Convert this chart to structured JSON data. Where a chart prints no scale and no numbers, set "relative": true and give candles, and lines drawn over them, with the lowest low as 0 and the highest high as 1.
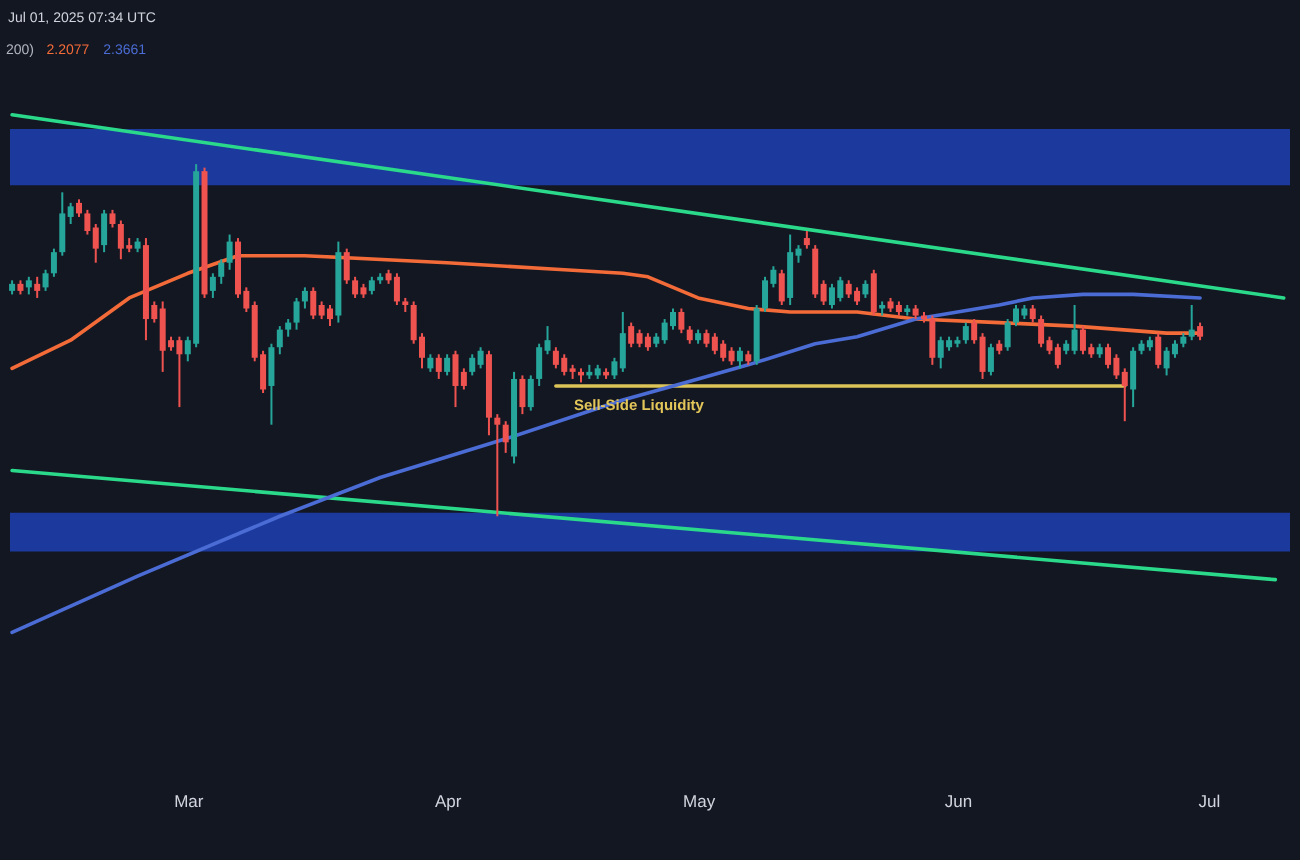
{
  "chart_data": {
    "type": "candlestick",
    "relative": true,
    "annotations": [
      "Jul 01, 2025 07:34 UTC",
      {
        "text": "Sell-Side Liquidity",
        "x": "2025-04-14",
        "y": 0.37
      }
    ],
    "legend": "top left",
    "legend_title": "200)",
    "xlim": [
      "2025-02-07T18:00",
      "2025-07-10T18:00"
    ],
    "xticks": [
      {
        "value": "2025-03-01",
        "label": "Mar"
      },
      {
        "value": "2025-04-01",
        "label": "Apr"
      },
      {
        "value": "2025-05-01",
        "label": "May"
      },
      {
        "value": "2025-06-01",
        "label": "Jun"
      },
      {
        "value": "2025-07-01",
        "label": "Jul"
      }
    ],
    "x": [
      "2025-02-08",
      "2025-02-09",
      "2025-02-10",
      "2025-02-11",
      "2025-02-12",
      "2025-02-13",
      "2025-02-14",
      "2025-02-15",
      "2025-02-16",
      "2025-02-17",
      "2025-02-18",
      "2025-02-19",
      "2025-02-20",
      "2025-02-21",
      "2025-02-22",
      "2025-02-23",
      "2025-02-24",
      "2025-02-25",
      "2025-02-26",
      "2025-02-27",
      "2025-02-28",
      "2025-03-01",
      "2025-03-02",
      "2025-03-03",
      "2025-03-04",
      "2025-03-05",
      "2025-03-06",
      "2025-03-07",
      "2025-03-08",
      "2025-03-09",
      "2025-03-10",
      "2025-03-11",
      "2025-03-12",
      "2025-03-13",
      "2025-03-14",
      "2025-03-15",
      "2025-03-16",
      "2025-03-17",
      "2025-03-18",
      "2025-03-19",
      "2025-03-20",
      "2025-03-21",
      "2025-03-22",
      "2025-03-23",
      "2025-03-24",
      "2025-03-25",
      "2025-03-26",
      "2025-03-27",
      "2025-03-28",
      "2025-03-29",
      "2025-03-30",
      "2025-03-31",
      "2025-04-01",
      "2025-04-02",
      "2025-04-03",
      "2025-04-04",
      "2025-04-05",
      "2025-04-06",
      "2025-04-07",
      "2025-04-08",
      "2025-04-09",
      "2025-04-10",
      "2025-04-11",
      "2025-04-12",
      "2025-04-13",
      "2025-04-14",
      "2025-04-15",
      "2025-04-16",
      "2025-04-17",
      "2025-04-18",
      "2025-04-19",
      "2025-04-20",
      "2025-04-21",
      "2025-04-22",
      "2025-04-23",
      "2025-04-24",
      "2025-04-25",
      "2025-04-26",
      "2025-04-27",
      "2025-04-28",
      "2025-04-29",
      "2025-04-30",
      "2025-05-01",
      "2025-05-02",
      "2025-05-03",
      "2025-05-04",
      "2025-05-05",
      "2025-05-06",
      "2025-05-07",
      "2025-05-08",
      "2025-05-09",
      "2025-05-10",
      "2025-05-11",
      "2025-05-12",
      "2025-05-13",
      "2025-05-14",
      "2025-05-15",
      "2025-05-16",
      "2025-05-17",
      "2025-05-18",
      "2025-05-19",
      "2025-05-20",
      "2025-05-21",
      "2025-05-22",
      "2025-05-23",
      "2025-05-24",
      "2025-05-25",
      "2025-05-26",
      "2025-05-27",
      "2025-05-28",
      "2025-05-29",
      "2025-05-30",
      "2025-05-31",
      "2025-06-01",
      "2025-06-02",
      "2025-06-03",
      "2025-06-04",
      "2025-06-05",
      "2025-06-06",
      "2025-06-07",
      "2025-06-08",
      "2025-06-09",
      "2025-06-10",
      "2025-06-11",
      "2025-06-12",
      "2025-06-13",
      "2025-06-14",
      "2025-06-15",
      "2025-06-16",
      "2025-06-17",
      "2025-06-18",
      "2025-06-19",
      "2025-06-20",
      "2025-06-21",
      "2025-06-22",
      "2025-06-23",
      "2025-06-24",
      "2025-06-25",
      "2025-06-26",
      "2025-06-27",
      "2025-06-28",
      "2025-06-29",
      "2025-06-30"
    ],
    "ohlc": [
      [
        0.64,
        0.67,
        0.63,
        0.66
      ],
      [
        0.66,
        0.67,
        0.63,
        0.64
      ],
      [
        0.65,
        0.68,
        0.63,
        0.67
      ],
      [
        0.66,
        0.68,
        0.62,
        0.64
      ],
      [
        0.65,
        0.7,
        0.64,
        0.69
      ],
      [
        0.69,
        0.76,
        0.68,
        0.75
      ],
      [
        0.75,
        0.92,
        0.74,
        0.86
      ],
      [
        0.85,
        0.89,
        0.83,
        0.88
      ],
      [
        0.89,
        0.9,
        0.85,
        0.86
      ],
      [
        0.86,
        0.87,
        0.8,
        0.81
      ],
      [
        0.82,
        0.83,
        0.72,
        0.76
      ],
      [
        0.77,
        0.87,
        0.75,
        0.86
      ],
      [
        0.86,
        0.87,
        0.82,
        0.83
      ],
      [
        0.83,
        0.84,
        0.73,
        0.76
      ],
      [
        0.77,
        0.79,
        0.75,
        0.76
      ],
      [
        0.76,
        0.79,
        0.75,
        0.78
      ],
      [
        0.77,
        0.79,
        0.5,
        0.56
      ],
      [
        0.6,
        0.61,
        0.55,
        0.56
      ],
      [
        0.59,
        0.61,
        0.41,
        0.47
      ],
      [
        0.5,
        0.51,
        0.47,
        0.48
      ],
      [
        0.5,
        0.51,
        0.31,
        0.46
      ],
      [
        0.46,
        0.51,
        0.44,
        0.5
      ],
      [
        0.49,
        1,
        0.48,
        0.98
      ],
      [
        0.98,
        0.99,
        0.62,
        0.63
      ],
      [
        0.64,
        0.69,
        0.62,
        0.68
      ],
      [
        0.68,
        0.73,
        0.66,
        0.72
      ],
      [
        0.72,
        0.8,
        0.7,
        0.78
      ],
      [
        0.78,
        0.79,
        0.62,
        0.63
      ],
      [
        0.64,
        0.65,
        0.58,
        0.59
      ],
      [
        0.6,
        0.61,
        0.44,
        0.45
      ],
      [
        0.46,
        0.47,
        0.35,
        0.36
      ],
      [
        0.37,
        0.49,
        0.26,
        0.48
      ],
      [
        0.48,
        0.54,
        0.46,
        0.53
      ],
      [
        0.53,
        0.56,
        0.51,
        0.55
      ],
      [
        0.55,
        0.62,
        0.53,
        0.61
      ],
      [
        0.61,
        0.65,
        0.59,
        0.64
      ],
      [
        0.64,
        0.65,
        0.56,
        0.57
      ],
      [
        0.6,
        0.61,
        0.56,
        0.57
      ],
      [
        0.59,
        0.6,
        0.54,
        0.56
      ],
      [
        0.57,
        0.78,
        0.55,
        0.75
      ],
      [
        0.75,
        0.76,
        0.66,
        0.67
      ],
      [
        0.67,
        0.68,
        0.62,
        0.63
      ],
      [
        0.65,
        0.66,
        0.62,
        0.63
      ],
      [
        0.64,
        0.68,
        0.63,
        0.67
      ],
      [
        0.67,
        0.69,
        0.66,
        0.68
      ],
      [
        0.69,
        0.7,
        0.66,
        0.67
      ],
      [
        0.68,
        0.69,
        0.6,
        0.61
      ],
      [
        0.61,
        0.62,
        0.58,
        0.6
      ],
      [
        0.6,
        0.61,
        0.49,
        0.5
      ],
      [
        0.51,
        0.52,
        0.42,
        0.45
      ],
      [
        0.42,
        0.46,
        0.41,
        0.45
      ],
      [
        0.45,
        0.46,
        0.39,
        0.41
      ],
      [
        0.41,
        0.46,
        0.4,
        0.45
      ],
      [
        0.46,
        0.47,
        0.31,
        0.37
      ],
      [
        0.41,
        0.42,
        0.36,
        0.37
      ],
      [
        0.41,
        0.46,
        0.4,
        0.45
      ],
      [
        0.43,
        0.48,
        0.42,
        0.47
      ],
      [
        0.46,
        0.47,
        0.23,
        0.28
      ],
      [
        0.28,
        0.29,
        0,
        0.26
      ],
      [
        0.26,
        0.27,
        0.18,
        0.21
      ],
      [
        0.17,
        0.41,
        0.15,
        0.39
      ],
      [
        0.39,
        0.4,
        0.29,
        0.31
      ],
      [
        0.31,
        0.4,
        0.3,
        0.39
      ],
      [
        0.39,
        0.49,
        0.37,
        0.48
      ],
      [
        0.47,
        0.54,
        0.46,
        0.5
      ],
      [
        0.47,
        0.48,
        0.42,
        0.43
      ],
      [
        0.45,
        0.46,
        0.4,
        0.41
      ],
      [
        0.42,
        0.43,
        0.39,
        0.41
      ],
      [
        0.41,
        0.42,
        0.38,
        0.4
      ],
      [
        0.4,
        0.43,
        0.39,
        0.41
      ],
      [
        0.4,
        0.43,
        0.39,
        0.42
      ],
      [
        0.41,
        0.42,
        0.39,
        0.4
      ],
      [
        0.4,
        0.45,
        0.39,
        0.44
      ],
      [
        0.42,
        0.58,
        0.41,
        0.52
      ],
      [
        0.54,
        0.55,
        0.48,
        0.49
      ],
      [
        0.52,
        0.53,
        0.48,
        0.49
      ],
      [
        0.51,
        0.52,
        0.47,
        0.48
      ],
      [
        0.49,
        0.52,
        0.48,
        0.51
      ],
      [
        0.5,
        0.56,
        0.49,
        0.55
      ],
      [
        0.54,
        0.59,
        0.53,
        0.58
      ],
      [
        0.58,
        0.59,
        0.52,
        0.53
      ],
      [
        0.53,
        0.54,
        0.49,
        0.5
      ],
      [
        0.5,
        0.53,
        0.49,
        0.52
      ],
      [
        0.52,
        0.53,
        0.48,
        0.49
      ],
      [
        0.51,
        0.52,
        0.46,
        0.47
      ],
      [
        0.49,
        0.5,
        0.44,
        0.45
      ],
      [
        0.47,
        0.48,
        0.43,
        0.44
      ],
      [
        0.44,
        0.48,
        0.42,
        0.47
      ],
      [
        0.46,
        0.47,
        0.43,
        0.44
      ],
      [
        0.44,
        0.6,
        0.43,
        0.59
      ],
      [
        0.59,
        0.68,
        0.58,
        0.67
      ],
      [
        0.66,
        0.71,
        0.65,
        0.7
      ],
      [
        0.69,
        0.7,
        0.6,
        0.61
      ],
      [
        0.62,
        0.8,
        0.6,
        0.75
      ],
      [
        0.74,
        0.77,
        0.72,
        0.76
      ],
      [
        0.79,
        0.81,
        0.76,
        0.77
      ],
      [
        0.76,
        0.77,
        0.62,
        0.63
      ],
      [
        0.66,
        0.67,
        0.6,
        0.61
      ],
      [
        0.6,
        0.66,
        0.59,
        0.65
      ],
      [
        0.62,
        0.68,
        0.61,
        0.67
      ],
      [
        0.66,
        0.67,
        0.62,
        0.63
      ],
      [
        0.64,
        0.65,
        0.6,
        0.61
      ],
      [
        0.63,
        0.67,
        0.62,
        0.66
      ],
      [
        0.69,
        0.7,
        0.57,
        0.58
      ],
      [
        0.59,
        0.61,
        0.57,
        0.6
      ],
      [
        0.61,
        0.62,
        0.58,
        0.59
      ],
      [
        0.6,
        0.61,
        0.57,
        0.58
      ],
      [
        0.58,
        0.6,
        0.57,
        0.59
      ],
      [
        0.59,
        0.6,
        0.56,
        0.57
      ],
      [
        0.57,
        0.58,
        0.55,
        0.56
      ],
      [
        0.56,
        0.57,
        0.43,
        0.45
      ],
      [
        0.45,
        0.51,
        0.42,
        0.5
      ],
      [
        0.48,
        0.51,
        0.47,
        0.5
      ],
      [
        0.49,
        0.51,
        0.48,
        0.5
      ],
      [
        0.5,
        0.55,
        0.49,
        0.54
      ],
      [
        0.55,
        0.56,
        0.49,
        0.5
      ],
      [
        0.51,
        0.52,
        0.39,
        0.41
      ],
      [
        0.41,
        0.49,
        0.4,
        0.48
      ],
      [
        0.49,
        0.5,
        0.46,
        0.47
      ],
      [
        0.48,
        0.56,
        0.47,
        0.55
      ],
      [
        0.55,
        0.6,
        0.54,
        0.59
      ],
      [
        0.57,
        0.6,
        0.56,
        0.59
      ],
      [
        0.59,
        0.6,
        0.55,
        0.56
      ],
      [
        0.56,
        0.57,
        0.48,
        0.49
      ],
      [
        0.5,
        0.51,
        0.46,
        0.47
      ],
      [
        0.48,
        0.49,
        0.42,
        0.43
      ],
      [
        0.47,
        0.5,
        0.46,
        0.49
      ],
      [
        0.47,
        0.6,
        0.46,
        0.53
      ],
      [
        0.53,
        0.54,
        0.46,
        0.47
      ],
      [
        0.48,
        0.49,
        0.45,
        0.46
      ],
      [
        0.46,
        0.49,
        0.45,
        0.48
      ],
      [
        0.48,
        0.49,
        0.42,
        0.43
      ],
      [
        0.45,
        0.46,
        0.39,
        0.4
      ],
      [
        0.41,
        0.42,
        0.27,
        0.37
      ],
      [
        0.36,
        0.48,
        0.31,
        0.47
      ],
      [
        0.47,
        0.5,
        0.46,
        0.49
      ],
      [
        0.48,
        0.51,
        0.47,
        0.5
      ],
      [
        0.51,
        0.52,
        0.42,
        0.43
      ],
      [
        0.42,
        0.48,
        0.4,
        0.47
      ],
      [
        0.46,
        0.5,
        0.45,
        0.49
      ],
      [
        0.49,
        0.52,
        0.48,
        0.51
      ],
      [
        0.51,
        0.6,
        0.5,
        0.53
      ],
      [
        0.54,
        0.55,
        0.5,
        0.51
      ]
    ],
    "colors": [
      "#26a69a",
      "#ef5350",
      "#26a69a",
      "#ef5350",
      "#26a69a",
      "#26a69a",
      "#26a69a",
      "#26a69a",
      "#ef5350",
      "#ef5350",
      "#ef5350",
      "#26a69a",
      "#ef5350",
      "#ef5350",
      "#ef5350",
      "#26a69a",
      "#ef5350",
      "#ef5350",
      "#ef5350",
      "#ef5350",
      "#ef5350",
      "#26a69a",
      "#26a69a",
      "#ef5350",
      "#26a69a",
      "#26a69a",
      "#26a69a",
      "#ef5350",
      "#ef5350",
      "#ef5350",
      "#ef5350",
      "#26a69a",
      "#26a69a",
      "#26a69a",
      "#26a69a",
      "#26a69a",
      "#ef5350",
      "#ef5350",
      "#ef5350",
      "#26a69a",
      "#ef5350",
      "#ef5350",
      "#ef5350",
      "#26a69a",
      "#26a69a",
      "#ef5350",
      "#ef5350",
      "#ef5350",
      "#ef5350",
      "#ef5350",
      "#26a69a",
      "#ef5350",
      "#26a69a",
      "#ef5350",
      "#ef5350",
      "#26a69a",
      "#26a69a",
      "#ef5350",
      "#ef5350",
      "#ef5350",
      "#26a69a",
      "#ef5350",
      "#26a69a",
      "#26a69a",
      "#26a69a",
      "#ef5350",
      "#ef5350",
      "#ef5350",
      "#ef5350",
      "#26a69a",
      "#26a69a",
      "#ef5350",
      "#26a69a",
      "#26a69a",
      "#ef5350",
      "#ef5350",
      "#ef5350",
      "#26a69a",
      "#26a69a",
      "#26a69a",
      "#ef5350",
      "#ef5350",
      "#26a69a",
      "#ef5350",
      "#ef5350",
      "#ef5350",
      "#ef5350",
      "#26a69a",
      "#ef5350",
      "#26a69a",
      "#26a69a",
      "#26a69a",
      "#ef5350",
      "#26a69a",
      "#26a69a",
      "#ef5350",
      "#ef5350",
      "#ef5350",
      "#26a69a",
      "#26a69a",
      "#ef5350",
      "#ef5350",
      "#26a69a",
      "#ef5350",
      "#26a69a",
      "#ef5350",
      "#ef5350",
      "#26a69a",
      "#ef5350",
      "#ef5350",
      "#ef5350",
      "#26a69a",
      "#26a69a",
      "#26a69a",
      "#26a69a",
      "#ef5350",
      "#ef5350",
      "#26a69a",
      "#ef5350",
      "#26a69a",
      "#26a69a",
      "#26a69a",
      "#ef5350",
      "#ef5350",
      "#ef5350",
      "#ef5350",
      "#26a69a",
      "#26a69a",
      "#ef5350",
      "#ef5350",
      "#26a69a",
      "#ef5350",
      "#ef5350",
      "#ef5350",
      "#26a69a",
      "#26a69a",
      "#26a69a",
      "#ef5350",
      "#26a69a",
      "#26a69a",
      "#26a69a",
      "#26a69a",
      "#ef5350"
    ],
    "bands": [
      {
        "axis": "y",
        "from": 0.94,
        "to": 1.1,
        "color": "#1c3a9e"
      },
      {
        "axis": "y",
        "from": -0.1,
        "to": 0.01,
        "color": "#1c3a9e"
      }
    ],
    "series": [
      {
        "type": "line",
        "color": "#2bd98b",
        "x": [
          "2025-02-08",
          "2025-07-10"
        ],
        "values": [
          1.14,
          0.62
        ]
      },
      {
        "type": "line",
        "color": "#2bd98b",
        "x": [
          "2025-02-08",
          "2025-07-09"
        ],
        "values": [
          0.13,
          -0.18
        ]
      },
      {
        "type": "line",
        "color": "#dcc458",
        "x": [
          "2025-04-14",
          "2025-06-21"
        ],
        "values": [
          0.37,
          0.37
        ]
      },
      {
        "type": "line",
        "name": "2.2077",
        "color": "#f26b38",
        "x": [
          "2025-02-08",
          "2025-02-15",
          "2025-02-22",
          "2025-03-01",
          "2025-03-07",
          "2025-03-15",
          "2025-04-01",
          "2025-04-15",
          "2025-04-22",
          "2025-04-25",
          "2025-05-01",
          "2025-05-07",
          "2025-05-12",
          "2025-05-20",
          "2025-05-27",
          "2025-06-06",
          "2025-06-15",
          "2025-06-26",
          "2025-06-30"
        ],
        "values": [
          0.42,
          0.5,
          0.62,
          0.69,
          0.74,
          0.74,
          0.72,
          0.7,
          0.69,
          0.68,
          0.62,
          0.59,
          0.58,
          0.58,
          0.56,
          0.55,
          0.54,
          0.52,
          0.52
        ]
      },
      {
        "type": "line",
        "name": "2.3661",
        "color": "#4a6cd4",
        "x": [
          "2025-02-08",
          "2025-02-23",
          "2025-03-12",
          "2025-03-24",
          "2025-04-08",
          "2025-04-22",
          "2025-05-01",
          "2025-05-07",
          "2025-05-15",
          "2025-05-20",
          "2025-05-27",
          "2025-06-06",
          "2025-06-10",
          "2025-06-16",
          "2025-06-22",
          "2025-06-30"
        ],
        "values": [
          -0.33,
          -0.17,
          0.0,
          0.11,
          0.22,
          0.33,
          0.39,
          0.43,
          0.49,
          0.51,
          0.56,
          0.6,
          0.62,
          0.63,
          0.63,
          0.62
        ]
      }
    ]
  }
}
